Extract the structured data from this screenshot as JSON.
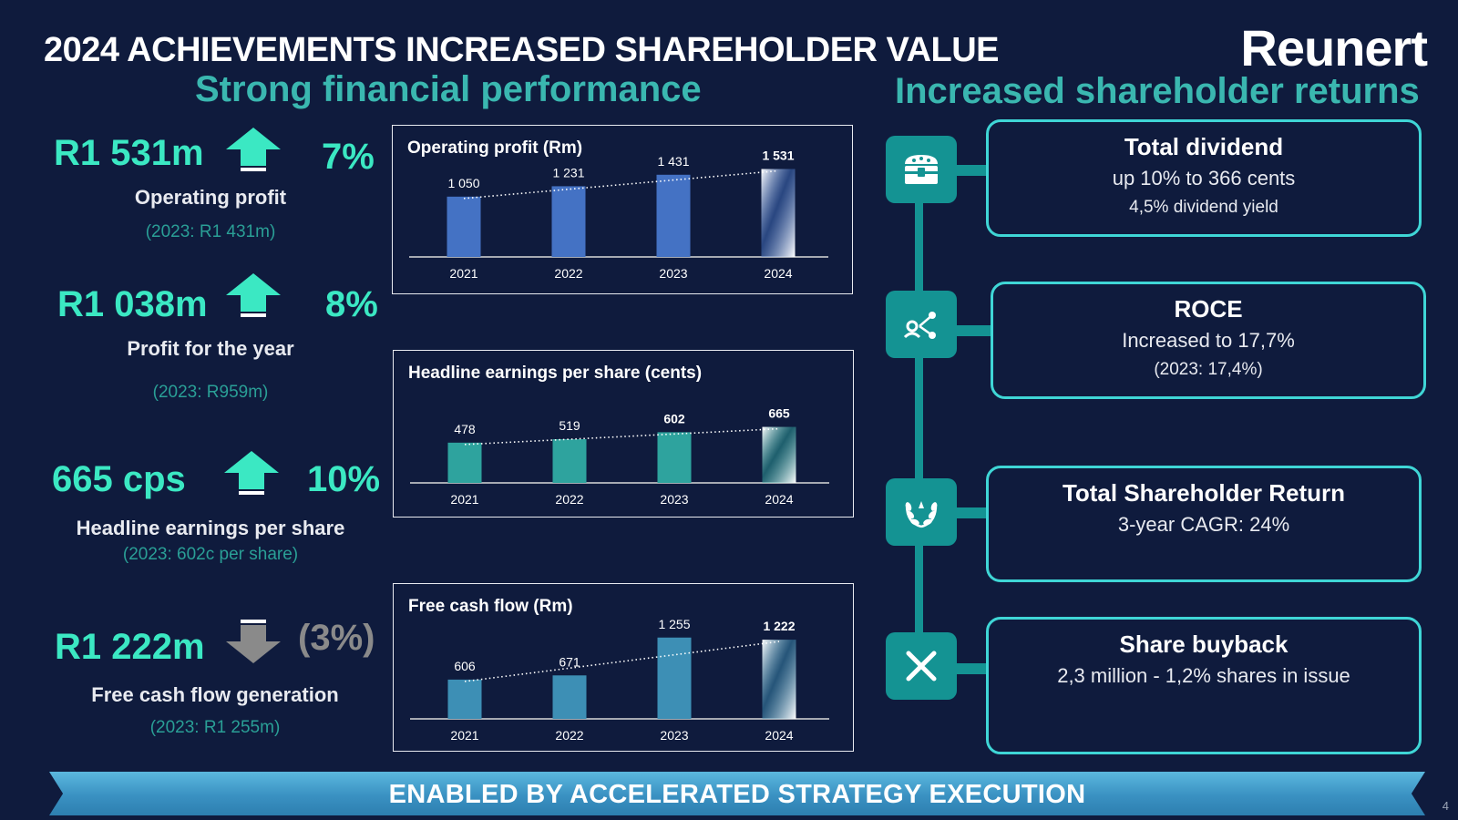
{
  "header": {
    "title": "2024 ACHIEVEMENTS INCREASED SHAREHOLDER VALUE",
    "logo_text": "Reunert",
    "subtitle_left": "Strong financial performance",
    "subtitle_right": "Increased shareholder returns"
  },
  "kpis": [
    {
      "value": "R1 531m",
      "direction": "up",
      "pct": "7%",
      "label": "Operating profit",
      "prior": "(2023: R1 431m)"
    },
    {
      "value": "R1 038m",
      "direction": "up",
      "pct": "8%",
      "label": "Profit for the year",
      "prior": "(2023: R959m)"
    },
    {
      "value": "665 cps",
      "direction": "up",
      "pct": "10%",
      "label": "Headline earnings per share",
      "prior": "(2023: 602c per share)"
    },
    {
      "value": "R1 222m",
      "direction": "down",
      "pct": "(3%)",
      "label": "Free cash flow generation",
      "prior": "(2023: R1 255m)"
    }
  ],
  "chart_data": [
    {
      "type": "bar",
      "title": "Operating profit (Rm)",
      "categories": [
        "2021",
        "2022",
        "2023",
        "2024"
      ],
      "values": [
        1050,
        1231,
        1431,
        1531
      ],
      "value_labels": [
        "1 050",
        "1 231",
        "1 431",
        "1 531"
      ],
      "bar_color": "#4472c4",
      "highlight_last": true,
      "trendline": true,
      "ylim": [
        0,
        1650
      ]
    },
    {
      "type": "bar",
      "title": "Headline earnings per share (cents)",
      "categories": [
        "2021",
        "2022",
        "2023",
        "2024"
      ],
      "values": [
        478,
        519,
        602,
        665
      ],
      "value_labels": [
        "478",
        "519",
        "602",
        "665"
      ],
      "bar_color": "#2ea39e",
      "highlight_last": true,
      "trendline": true,
      "ylim": [
        0,
        1050
      ]
    },
    {
      "type": "bar",
      "title": "Free cash flow (Rm)",
      "categories": [
        "2021",
        "2022",
        "2023",
        "2024"
      ],
      "values": [
        606,
        671,
        1255,
        1222
      ],
      "value_labels": [
        "606",
        "671",
        "1 255",
        "1 222"
      ],
      "bar_color": "#3d8fb5",
      "highlight_last": true,
      "trendline": true,
      "ylim": [
        0,
        1350
      ]
    }
  ],
  "returns": [
    {
      "icon": "treasure-chest-icon",
      "title": "Total dividend",
      "line1": "up 10% to 366 cents",
      "line2": "4,5% dividend yield"
    },
    {
      "icon": "share-network-icon",
      "title": "ROCE",
      "line1": "Increased to 17,7%",
      "line2": "(2023: 17,4%)"
    },
    {
      "icon": "laurel-wreath-icon",
      "title": "Total Shareholder Return",
      "line1": "3-year CAGR: 24%",
      "line2": ""
    },
    {
      "icon": "close-x-icon",
      "title": "Share buyback",
      "line1": "2,3 million - 1,2% shares in issue",
      "line2": ""
    }
  ],
  "footer": {
    "banner": "ENABLED BY ACCELERATED STRATEGY EXECUTION",
    "page_number": "4"
  },
  "colors": {
    "background": "#0f1b3d",
    "accent_green": "#3be8c3",
    "teal": "#149393",
    "subtitle_teal": "#3ab7b0",
    "box_border": "#3fd6d6"
  }
}
